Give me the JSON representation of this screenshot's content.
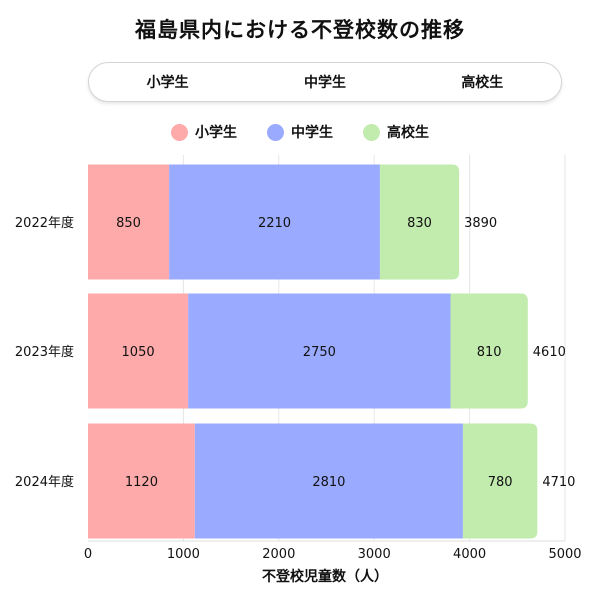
{
  "header": {
    "title": "福島県内における不登校数の推移"
  },
  "tabs": [
    {
      "label": "小学生"
    },
    {
      "label": "中学生"
    },
    {
      "label": "高校生"
    }
  ],
  "legend": [
    {
      "label": "小学生",
      "color": "#FFAAAA"
    },
    {
      "label": "中学生",
      "color": "#9AAAFF"
    },
    {
      "label": "高校生",
      "color": "#C2EBAE"
    }
  ],
  "chart_data": {
    "type": "bar",
    "orientation": "horizontal",
    "stacked": true,
    "title": "福島県内における不登校数の推移",
    "categories": [
      "2022年度",
      "2023年度",
      "2024年度"
    ],
    "series": [
      {
        "name": "小学生",
        "color": "#FFAAAA",
        "values": [
          850,
          1050,
          1120
        ]
      },
      {
        "name": "中学生",
        "color": "#9AAAFF",
        "values": [
          2210,
          2750,
          2810
        ]
      },
      {
        "name": "高校生",
        "color": "#C2EBAE",
        "values": [
          830,
          810,
          780
        ]
      }
    ],
    "totals": [
      3890,
      4610,
      4710
    ],
    "xlabel": "不登校児童数（人）",
    "ylabel": "",
    "xlim": [
      0,
      5000
    ],
    "xticks": [
      0,
      1000,
      2000,
      3000,
      4000,
      5000
    ],
    "grid": true,
    "legend_position": "top-center"
  }
}
